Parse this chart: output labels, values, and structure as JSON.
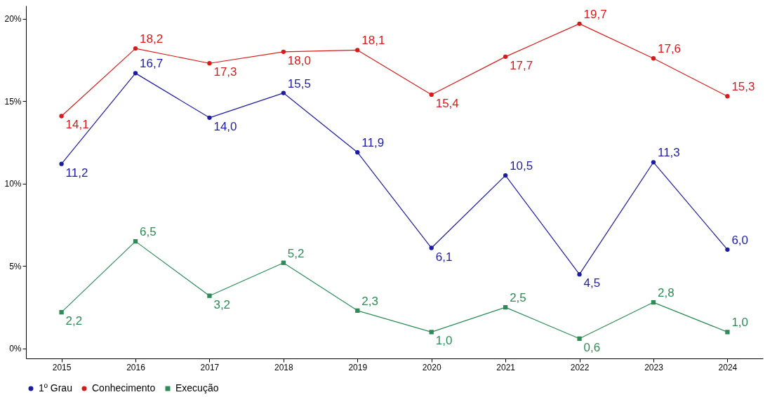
{
  "chart_data": {
    "type": "line",
    "categories": [
      "2015",
      "2016",
      "2017",
      "2018",
      "2019",
      "2020",
      "2021",
      "2022",
      "2023",
      "2024"
    ],
    "series": [
      {
        "name": "1º Grau",
        "color": "#1c1ca3",
        "marker": "circle",
        "values": [
          11.2,
          16.7,
          14.0,
          15.5,
          11.9,
          6.1,
          10.5,
          4.5,
          11.3,
          6.0
        ],
        "value_labels": [
          "11,2",
          "16,7",
          "14,0",
          "15,5",
          "11,9",
          "6,1",
          "10,5",
          "4,5",
          "11,3",
          "6,0"
        ]
      },
      {
        "name": "Conhecimento",
        "color": "#d91a1a",
        "marker": "circle",
        "values": [
          14.1,
          18.2,
          17.3,
          18.0,
          18.1,
          15.4,
          17.7,
          19.7,
          17.6,
          15.3
        ],
        "value_labels": [
          "14,1",
          "18,2",
          "17,3",
          "18,0",
          "18,1",
          "15,4",
          "17,7",
          "19,7",
          "17,6",
          "15,3"
        ]
      },
      {
        "name": "Execução",
        "color": "#2e8b57",
        "marker": "square",
        "values": [
          2.2,
          6.5,
          3.2,
          5.2,
          2.3,
          1.0,
          2.5,
          0.6,
          2.8,
          1.0
        ],
        "value_labels": [
          "2,2",
          "6,5",
          "3,2",
          "5,2",
          "2,3",
          "1,0",
          "2,5",
          "0,6",
          "2,8",
          "1,0"
        ]
      }
    ],
    "ylim": [
      -0.6,
      20.8
    ],
    "yticks": [
      {
        "value": 0,
        "label": "0%"
      },
      {
        "value": 5,
        "label": "5%"
      },
      {
        "value": 10,
        "label": "10%"
      },
      {
        "value": 15,
        "label": "15%"
      },
      {
        "value": 20,
        "label": "20%"
      }
    ],
    "legend": "bottom"
  }
}
